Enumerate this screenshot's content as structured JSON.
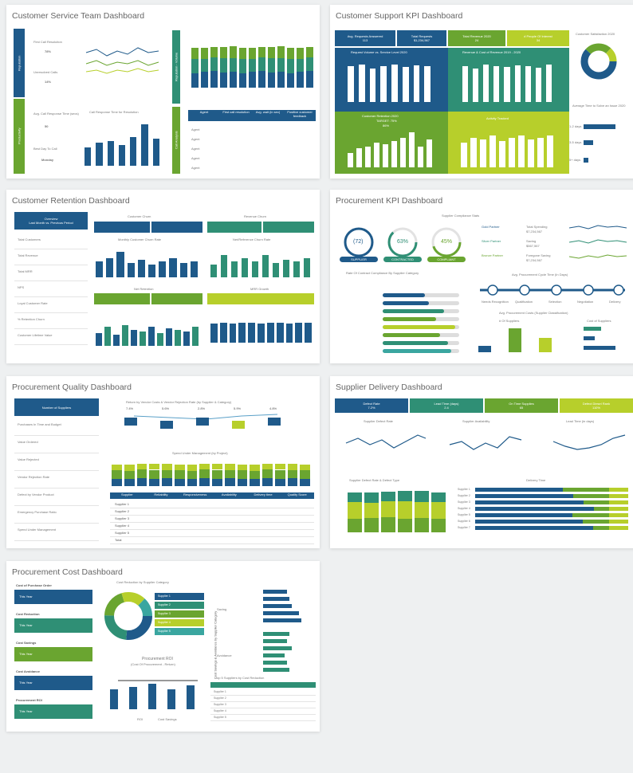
{
  "colors": {
    "navy": "#1f5a8a",
    "teal": "#2f8f75",
    "green": "#6aa530",
    "lime": "#b7cf2b",
    "grey": "#cfd4d6"
  },
  "panels": {
    "p1": {
      "title": "Customer Service Team Dashboard",
      "side1": "Reputation",
      "side2": "Productivity",
      "k1": "First Call Resolution",
      "k1v": "78%",
      "k2": "Unresolved Calls",
      "k2v": "14%",
      "k3": "Avg. Call Response Time (secs)",
      "k3v": "50",
      "k4": "Best Day To Call",
      "k4v": "Monday",
      "chart_title": "Call Response Time for Resolution",
      "rtab1": "Reputation - Volume",
      "rtab2": "Call Analysis",
      "cols": [
        "Agent",
        "First call resolution",
        "Avg. wait (in sec)",
        "Positive customer feedback"
      ],
      "rows": [
        "Agent",
        "Agent",
        "Agent",
        "Agent",
        "Agent"
      ]
    },
    "p2": {
      "title": "Customer Support KPI Dashboard",
      "h1": "Avg. Requests Answered",
      "h1v": "113",
      "h2": "Total Requests",
      "h2v": "$1,234,567",
      "h3": "Total Revenue 2020",
      "h3v": "24",
      "h4": "# People Of Interest",
      "h4v": "34",
      "c1": "Request Volume vs. Service Level 2020",
      "c2": "Revenue & Cost of Revenue 2019 - 2020",
      "c3": "Customer Retention 2020",
      "c3a": "TARGET: 75%",
      "c3b": "86%",
      "c4": "Activity Tracked",
      "right1": "Customer Satisfaction 2020",
      "right2": "Average Time to Solve an Issue 2020",
      "rl": [
        "1-2 days",
        "3-5 days",
        "5+ days"
      ]
    },
    "p3": {
      "title": "Customer Retention Dashboard",
      "left_hdr": "Overview",
      "left_sub": "Last Month vs. Previous Period",
      "items": [
        "Total Customers",
        "Total Revenue",
        "Total MRR",
        "NPS",
        "Loyal Customer Rate",
        "% Retention Churn",
        "Customer Lifetime Value"
      ],
      "churn": "Customer Churn",
      "rchurn": "Revenue Churn",
      "c1": "Monthly Customer Churn Rate",
      "c2": "Net/Reference Churn Rate",
      "t1": "Net Retention",
      "t2": "MRR Growth"
    },
    "p4": {
      "title": "Procurement KPI Dashboard",
      "compliance": "Supplier Compliance Stats",
      "donuts": [
        "(72)",
        "63%",
        "45%"
      ],
      "donut_labels": [
        "SUPPLIER",
        "CONTRACTED",
        "COMPLIANT"
      ],
      "partners": [
        "Gold Partner",
        "Silver Partner",
        "Bronze Partner"
      ],
      "spend": [
        "Total Spending",
        "Saving",
        "Foregone Saving"
      ],
      "spend_v": [
        "$7,234,567",
        "$567,567",
        "$7,234,567"
      ],
      "rate": "Rate Of Contract Compliance By Supplier Category",
      "cycle": "Avg. Procurement Cycle Time (In Days)",
      "cycle_steps": [
        "Needs Recognition",
        "Qualification",
        "Selection",
        "Negotiation",
        "Delivery"
      ],
      "avg": "Avg. Procurement Costs (Supplier Classification)",
      "avg1": "# Of Suppliers",
      "avg2": "Cost of Suppliers"
    },
    "p5": {
      "title": "Procurement Quality Dashboard",
      "left_hdr": "Number of Suppliers",
      "items": [
        "Purchases In Time and Budget",
        "Value Ordered",
        "Value Rejected",
        "Vendor Rejection Rate",
        "Defect by Vendor Product",
        "Emergency Purchase Ratio",
        "Spend Under Management"
      ],
      "c1": "Return by Vendor Costs & Vendor Rejection Rate (by Supplier & Category)",
      "c2": "Spend Under Management (by Project)",
      "cols": [
        "Supplier",
        "Reliability",
        "Responsiveness",
        "Availability",
        "Delivery time",
        "Quality Score"
      ],
      "rows": [
        "Supplier 1",
        "Supplier 2",
        "Supplier 3",
        "Supplier 4",
        "Supplier 5",
        "Total"
      ],
      "pct": [
        "7.4%",
        "5.6%",
        "2.8%",
        "5.9%",
        "4.8%"
      ]
    },
    "p6": {
      "title": "Supplier Delivery Dashboard",
      "h1": "Defect Rate",
      "h1v": "7.2%",
      "h2": "Lead Time (days)",
      "h2v": "2.4",
      "h3": "On Time Supplies",
      "h3v": "65",
      "h4": "Defect Diesel Rank",
      "h4v": "110%",
      "c1": "Supplier Defect Rate",
      "c2": "Supplier Availability",
      "c3": "Lead Time (in days)",
      "c4": "Supplier Defect Rate & Defect Type",
      "c5": "Delivery Time",
      "rows": [
        "Supplier 1",
        "Supplier 2",
        "Supplier 3",
        "Supplier 4",
        "Supplier 5",
        "Supplier 6",
        "Supplier 7"
      ]
    },
    "p7": {
      "title": "Procurement Cost Dashboard",
      "labels": [
        "Cost of Purchase Order",
        "Cost Reduction",
        "Cost Savings",
        "Cost Avoidance",
        "Procurement ROI"
      ],
      "this_year": "This Year",
      "c1": "Cost Reduction by Supplier Category",
      "c2": "Procurement ROI",
      "c2b": "(Cost Of Procurement - Return)",
      "c3": "Cost Savings & Avoidance by Supplier Category",
      "c4": "Top 5 Suppliers by Cost Reduction",
      "side_a": "Saving",
      "side_b": "Avoidance",
      "legend": [
        "ROI",
        "Cost Savings"
      ],
      "sup": [
        "Supplier 1",
        "Supplier 2",
        "Supplier 3",
        "Supplier 4",
        "Supplier 5"
      ]
    }
  }
}
